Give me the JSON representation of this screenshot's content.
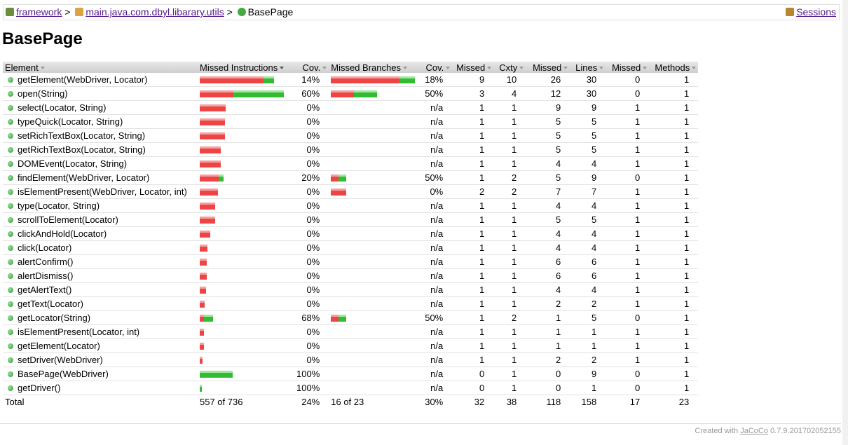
{
  "breadcrumb": {
    "items": [
      "framework",
      "main.java.com.dbyl.libarary.utils",
      "BasePage"
    ],
    "separator": ">",
    "sessions": "Sessions"
  },
  "title": "BasePage",
  "table": {
    "headers": [
      "Element",
      "Missed Instructions",
      "Cov.",
      "Missed Branches",
      "Cov.",
      "Missed",
      "Cxty",
      "Missed",
      "Lines",
      "Missed",
      "Methods"
    ],
    "rows": [
      {
        "cells": [
          "getElement(WebDriver, Locator)",
          "14%",
          "18%",
          9,
          10,
          26,
          30,
          0,
          1
        ],
        "instructions": [
          104,
          17
        ],
        "branches": [
          9,
          2
        ]
      },
      {
        "cells": [
          "open(String)",
          "60%",
          "50%",
          3,
          4,
          12,
          30,
          0,
          1
        ],
        "instructions": [
          55,
          82
        ],
        "branches": [
          3,
          3
        ]
      },
      {
        "cells": [
          "select(Locator, String)",
          "0%",
          "n/a",
          1,
          1,
          9,
          9,
          1,
          1
        ],
        "instructions": [
          42,
          0
        ]
      },
      {
        "cells": [
          "typeQuick(Locator, String)",
          "0%",
          "n/a",
          1,
          1,
          5,
          5,
          1,
          1
        ],
        "instructions": [
          41,
          0
        ]
      },
      {
        "cells": [
          "setRichTextBox(Locator, String)",
          "0%",
          "n/a",
          1,
          1,
          5,
          5,
          1,
          1
        ],
        "instructions": [
          41,
          0
        ]
      },
      {
        "cells": [
          "getRichTextBox(Locator, String)",
          "0%",
          "n/a",
          1,
          1,
          5,
          5,
          1,
          1
        ],
        "instructions": [
          34,
          0
        ]
      },
      {
        "cells": [
          "DOMEvent(Locator, String)",
          "0%",
          "n/a",
          1,
          1,
          4,
          4,
          1,
          1
        ],
        "instructions": [
          34,
          0
        ]
      },
      {
        "cells": [
          "findElement(WebDriver, Locator)",
          "20%",
          "50%",
          1,
          2,
          5,
          9,
          0,
          1
        ],
        "instructions": [
          31,
          8
        ],
        "branches": [
          1,
          1
        ]
      },
      {
        "cells": [
          "isElementPresent(WebDriver, Locator, int)",
          "0%",
          "0%",
          2,
          2,
          7,
          7,
          1,
          1
        ],
        "instructions": [
          30,
          0
        ],
        "branches": [
          2,
          0
        ]
      },
      {
        "cells": [
          "type(Locator, String)",
          "0%",
          "n/a",
          1,
          1,
          4,
          4,
          1,
          1
        ],
        "instructions": [
          25,
          0
        ]
      },
      {
        "cells": [
          "scrollToElement(Locator)",
          "0%",
          "n/a",
          1,
          1,
          5,
          5,
          1,
          1
        ],
        "instructions": [
          25,
          0
        ]
      },
      {
        "cells": [
          "clickAndHold(Locator)",
          "0%",
          "n/a",
          1,
          1,
          4,
          4,
          1,
          1
        ],
        "instructions": [
          17,
          0
        ]
      },
      {
        "cells": [
          "click(Locator)",
          "0%",
          "n/a",
          1,
          1,
          4,
          4,
          1,
          1
        ],
        "instructions": [
          13,
          0
        ]
      },
      {
        "cells": [
          "alertConfirm()",
          "0%",
          "n/a",
          1,
          1,
          6,
          6,
          1,
          1
        ],
        "instructions": [
          11,
          0
        ]
      },
      {
        "cells": [
          "alertDismiss()",
          "0%",
          "n/a",
          1,
          1,
          6,
          6,
          1,
          1
        ],
        "instructions": [
          11,
          0
        ]
      },
      {
        "cells": [
          "getAlertText()",
          "0%",
          "n/a",
          1,
          1,
          4,
          4,
          1,
          1
        ],
        "instructions": [
          10,
          0
        ]
      },
      {
        "cells": [
          "getText(Locator)",
          "0%",
          "n/a",
          1,
          1,
          2,
          2,
          1,
          1
        ],
        "instructions": [
          8,
          0
        ]
      },
      {
        "cells": [
          "getLocator(String)",
          "68%",
          "50%",
          1,
          2,
          1,
          5,
          0,
          1
        ],
        "instructions": [
          7,
          15
        ],
        "branches": [
          1,
          1
        ]
      },
      {
        "cells": [
          "isElementPresent(Locator, int)",
          "0%",
          "n/a",
          1,
          1,
          1,
          1,
          1,
          1
        ],
        "instructions": [
          7,
          0
        ]
      },
      {
        "cells": [
          "getElement(Locator)",
          "0%",
          "n/a",
          1,
          1,
          1,
          1,
          1,
          1
        ],
        "instructions": [
          7,
          0
        ]
      },
      {
        "cells": [
          "setDriver(WebDriver)",
          "0%",
          "n/a",
          1,
          1,
          2,
          2,
          1,
          1
        ],
        "instructions": [
          4,
          0
        ]
      },
      {
        "cells": [
          "BasePage(WebDriver)",
          "100%",
          "n/a",
          0,
          1,
          0,
          9,
          0,
          1
        ],
        "instructions": [
          0,
          54
        ]
      },
      {
        "cells": [
          "getDriver()",
          "100%",
          "n/a",
          0,
          1,
          0,
          1,
          0,
          1
        ],
        "instructions": [
          0,
          3
        ]
      }
    ],
    "total": [
      "Total",
      "557 of 736",
      "24%",
      "16 of 23",
      "30%",
      32,
      38,
      118,
      158,
      17,
      23
    ]
  },
  "footer": {
    "prefix": "Created with",
    "link": "JaCoCo",
    "version": "0.7.9.201702052155"
  }
}
